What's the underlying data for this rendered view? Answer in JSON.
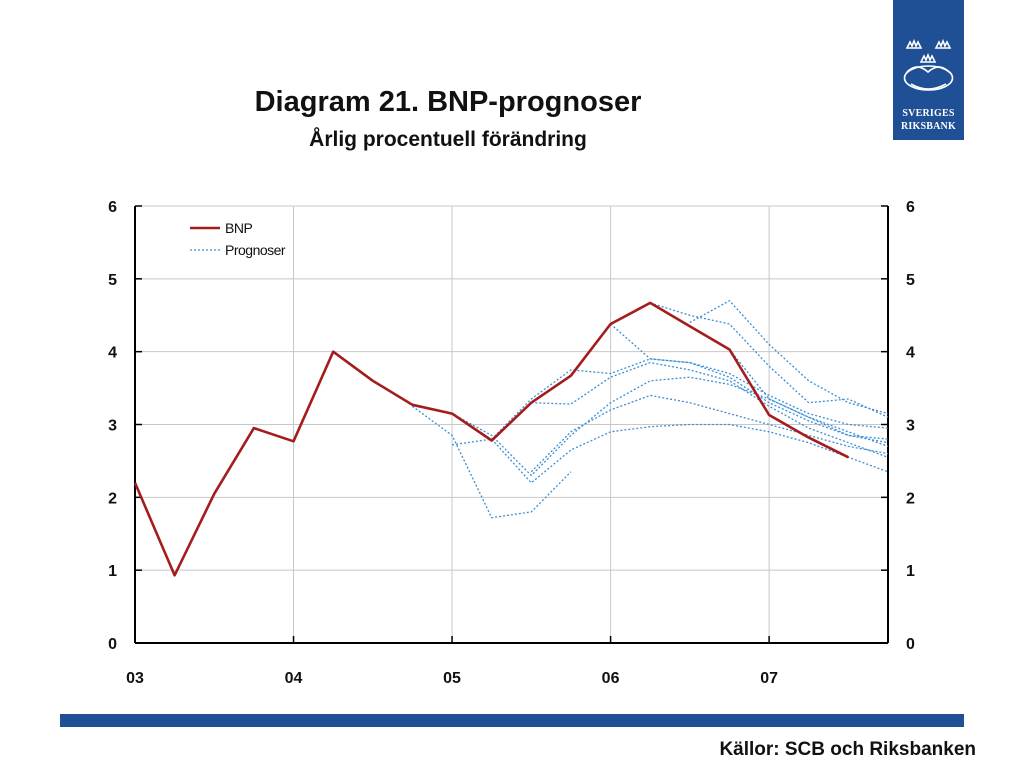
{
  "header": {
    "title": "Diagram 21. BNP-prognoser",
    "subtitle": "Årlig procentuell förändring"
  },
  "logo": {
    "line1": "SVERIGES",
    "line2": "RIKSBANK",
    "color": "#1f4f95",
    "icon": "crown-emblem-icon"
  },
  "footer": {
    "source": "Källor: SCB och Riksbanken",
    "bar_color": "#1f4f95"
  },
  "chart_data": {
    "type": "line",
    "x_ticks": [
      {
        "x": 2003.0,
        "label": "03"
      },
      {
        "x": 2004.0,
        "label": "04"
      },
      {
        "x": 2005.0,
        "label": "05"
      },
      {
        "x": 2006.0,
        "label": "06"
      },
      {
        "x": 2007.0,
        "label": "07"
      }
    ],
    "xlim": [
      2003.0,
      2007.75
    ],
    "ylim": [
      0,
      6
    ],
    "y_ticks": [
      0,
      1,
      2,
      3,
      4,
      5,
      6
    ],
    "y_axis_both_sides": true,
    "grid": true,
    "legend": {
      "position": "top-left",
      "entries": [
        {
          "label": "BNP",
          "style": "solid",
          "color": "#a51c1c"
        },
        {
          "label": "Prognoser",
          "style": "dotted",
          "color": "#3c8fd6"
        }
      ]
    },
    "series": [
      {
        "name": "BNP",
        "style": "solid",
        "color": "#a51c1c",
        "x": [
          2003.0,
          2003.25,
          2003.5,
          2003.75,
          2004.0,
          2004.25,
          2004.5,
          2004.75,
          2005.0,
          2005.25,
          2005.5,
          2005.75,
          2006.0,
          2006.25,
          2006.5,
          2006.75,
          2007.0,
          2007.25,
          2007.5
        ],
        "y": [
          2.2,
          0.93,
          2.05,
          2.95,
          2.77,
          4.0,
          3.6,
          3.27,
          3.15,
          2.78,
          3.3,
          3.67,
          4.38,
          4.67,
          4.35,
          4.03,
          3.13,
          2.82,
          2.55
        ]
      },
      {
        "style": "dotted",
        "color": "#3c8fd6",
        "x": [
          2004.75,
          2005.0,
          2005.25,
          2005.5,
          2005.75
        ],
        "y": [
          3.25,
          2.85,
          1.72,
          1.8,
          2.35
        ]
      },
      {
        "style": "dotted",
        "color": "#3c8fd6",
        "x": [
          2005.0,
          2005.25,
          2005.5,
          2005.75,
          2006.0,
          2006.25,
          2006.5,
          2006.75,
          2007.0,
          2007.25,
          2007.5,
          2007.75
        ],
        "y": [
          3.15,
          2.85,
          2.3,
          2.85,
          3.3,
          3.6,
          3.65,
          3.55,
          3.35,
          3.1,
          2.9,
          2.7
        ]
      },
      {
        "style": "dotted",
        "color": "#3c8fd6",
        "x": [
          2005.0,
          2005.25,
          2005.5,
          2005.75,
          2006.0,
          2006.25,
          2006.5,
          2006.75,
          2007.0,
          2007.25,
          2007.5,
          2007.75
        ],
        "y": [
          2.72,
          2.8,
          2.2,
          2.65,
          2.9,
          2.97,
          3.0,
          3.0,
          2.9,
          2.75,
          2.55,
          2.35
        ]
      },
      {
        "style": "dotted",
        "color": "#3c8fd6",
        "x": [
          2005.25,
          2005.5,
          2005.75,
          2006.0,
          2006.25,
          2006.5,
          2006.75,
          2007.0,
          2007.25,
          2007.5,
          2007.75
        ],
        "y": [
          2.8,
          3.35,
          3.75,
          3.7,
          3.9,
          3.85,
          3.7,
          3.4,
          3.15,
          3.0,
          2.95
        ]
      },
      {
        "style": "dotted",
        "color": "#3c8fd6",
        "x": [
          2005.5,
          2005.75,
          2006.0,
          2006.25,
          2006.5,
          2006.75,
          2007.0,
          2007.25,
          2007.5,
          2007.75
        ],
        "y": [
          3.3,
          3.28,
          3.65,
          3.85,
          3.75,
          3.6,
          3.25,
          2.95,
          2.75,
          2.55
        ]
      },
      {
        "style": "dotted",
        "color": "#3c8fd6",
        "x": [
          2005.5,
          2005.75,
          2006.0,
          2006.25,
          2006.5,
          2006.75,
          2007.0,
          2007.25,
          2007.5,
          2007.75
        ],
        "y": [
          2.35,
          2.9,
          3.2,
          3.4,
          3.3,
          3.15,
          3.0,
          2.85,
          2.7,
          2.6
        ]
      },
      {
        "style": "dotted",
        "color": "#3c8fd6",
        "x": [
          2006.0,
          2006.25,
          2006.5,
          2006.75,
          2007.0,
          2007.25,
          2007.5,
          2007.75
        ],
        "y": [
          4.38,
          3.9,
          3.85,
          3.65,
          3.3,
          3.05,
          2.85,
          2.75
        ]
      },
      {
        "style": "dotted",
        "color": "#3c8fd6",
        "x": [
          2006.25,
          2006.5,
          2006.75,
          2007.0,
          2007.25,
          2007.5,
          2007.75
        ],
        "y": [
          4.67,
          4.5,
          4.38,
          3.8,
          3.3,
          3.35,
          3.1
        ]
      },
      {
        "style": "dotted",
        "color": "#3c8fd6",
        "x": [
          2006.5,
          2006.75,
          2007.0,
          2007.25,
          2007.5,
          2007.75
        ],
        "y": [
          4.4,
          4.7,
          4.1,
          3.6,
          3.3,
          3.15
        ]
      },
      {
        "style": "dotted",
        "color": "#3c8fd6",
        "x": [
          2006.75,
          2007.0,
          2007.25,
          2007.5,
          2007.75
        ],
        "y": [
          4.03,
          3.35,
          3.1,
          2.85,
          2.8
        ]
      }
    ]
  }
}
